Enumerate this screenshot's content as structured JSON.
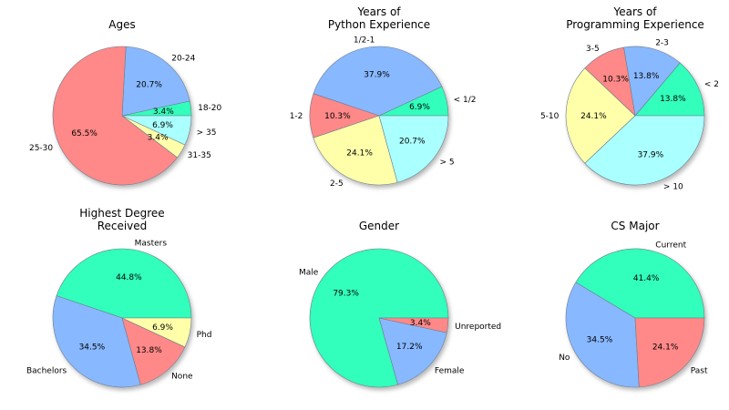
{
  "chart_data": [
    {
      "type": "pie",
      "title": [
        "Ages"
      ],
      "slices": [
        {
          "label": "18-20",
          "value": 3.4,
          "pct": "3.4%",
          "color": "#33ffbb"
        },
        {
          "label": "20-24",
          "value": 20.7,
          "pct": "20.7%",
          "color": "#88b8ff"
        },
        {
          "label": "25-30",
          "value": 65.5,
          "pct": "65.5%",
          "color": "#ff8888"
        },
        {
          "label": "31-35",
          "value": 3.4,
          "pct": "3.4%",
          "color": "#ffffaa"
        },
        {
          "label": "> 35",
          "value": 6.9,
          "pct": "6.9%",
          "color": "#aaffff"
        }
      ]
    },
    {
      "type": "pie",
      "title": [
        "Years of",
        "Python Experience"
      ],
      "slices": [
        {
          "label": "< 1/2",
          "value": 6.9,
          "pct": "6.9%",
          "color": "#33ffbb"
        },
        {
          "label": "1/2-1",
          "value": 37.9,
          "pct": "37.9%",
          "color": "#88b8ff"
        },
        {
          "label": "1-2",
          "value": 10.3,
          "pct": "10.3%",
          "color": "#ff8888"
        },
        {
          "label": "2-5",
          "value": 24.1,
          "pct": "24.1%",
          "color": "#ffffaa"
        },
        {
          "label": "> 5",
          "value": 20.7,
          "pct": "20.7%",
          "color": "#aaffff"
        }
      ]
    },
    {
      "type": "pie",
      "title": [
        "Years of",
        "Programming Experience"
      ],
      "slices": [
        {
          "label": "< 2",
          "value": 13.8,
          "pct": "13.8%",
          "color": "#33ffbb"
        },
        {
          "label": "2-3",
          "value": 13.8,
          "pct": "13.8%",
          "color": "#88b8ff"
        },
        {
          "label": "3-5",
          "value": 10.3,
          "pct": "10.3%",
          "color": "#ff8888"
        },
        {
          "label": "5-10",
          "value": 24.1,
          "pct": "24.1%",
          "color": "#ffffaa"
        },
        {
          "label": "> 10",
          "value": 37.9,
          "pct": "37.9%",
          "color": "#aaffff"
        }
      ]
    },
    {
      "type": "pie",
      "title": [
        "Highest Degree",
        "Received"
      ],
      "slices": [
        {
          "label": "Masters",
          "value": 44.8,
          "pct": "44.8%",
          "color": "#33ffbb"
        },
        {
          "label": "Bachelors",
          "value": 34.5,
          "pct": "34.5%",
          "color": "#88b8ff"
        },
        {
          "label": "None",
          "value": 13.8,
          "pct": "13.8%",
          "color": "#ff8888"
        },
        {
          "label": "Phd",
          "value": 6.9,
          "pct": "6.9%",
          "color": "#ffffaa"
        }
      ]
    },
    {
      "type": "pie",
      "title": [
        "Gender"
      ],
      "slices": [
        {
          "label": "Male",
          "value": 79.3,
          "pct": "79.3%",
          "color": "#33ffbb"
        },
        {
          "label": "Female",
          "value": 17.2,
          "pct": "17.2%",
          "color": "#88b8ff"
        },
        {
          "label": "Unreported",
          "value": 3.4,
          "pct": "3.4%",
          "color": "#ff8888"
        }
      ]
    },
    {
      "type": "pie",
      "title": [
        "CS Major"
      ],
      "slices": [
        {
          "label": "Current",
          "value": 41.4,
          "pct": "41.4%",
          "color": "#33ffbb"
        },
        {
          "label": "No",
          "value": 34.5,
          "pct": "34.5%",
          "color": "#88b8ff"
        },
        {
          "label": "Past",
          "value": 24.1,
          "pct": "24.1%",
          "color": "#ff8888"
        }
      ]
    }
  ]
}
